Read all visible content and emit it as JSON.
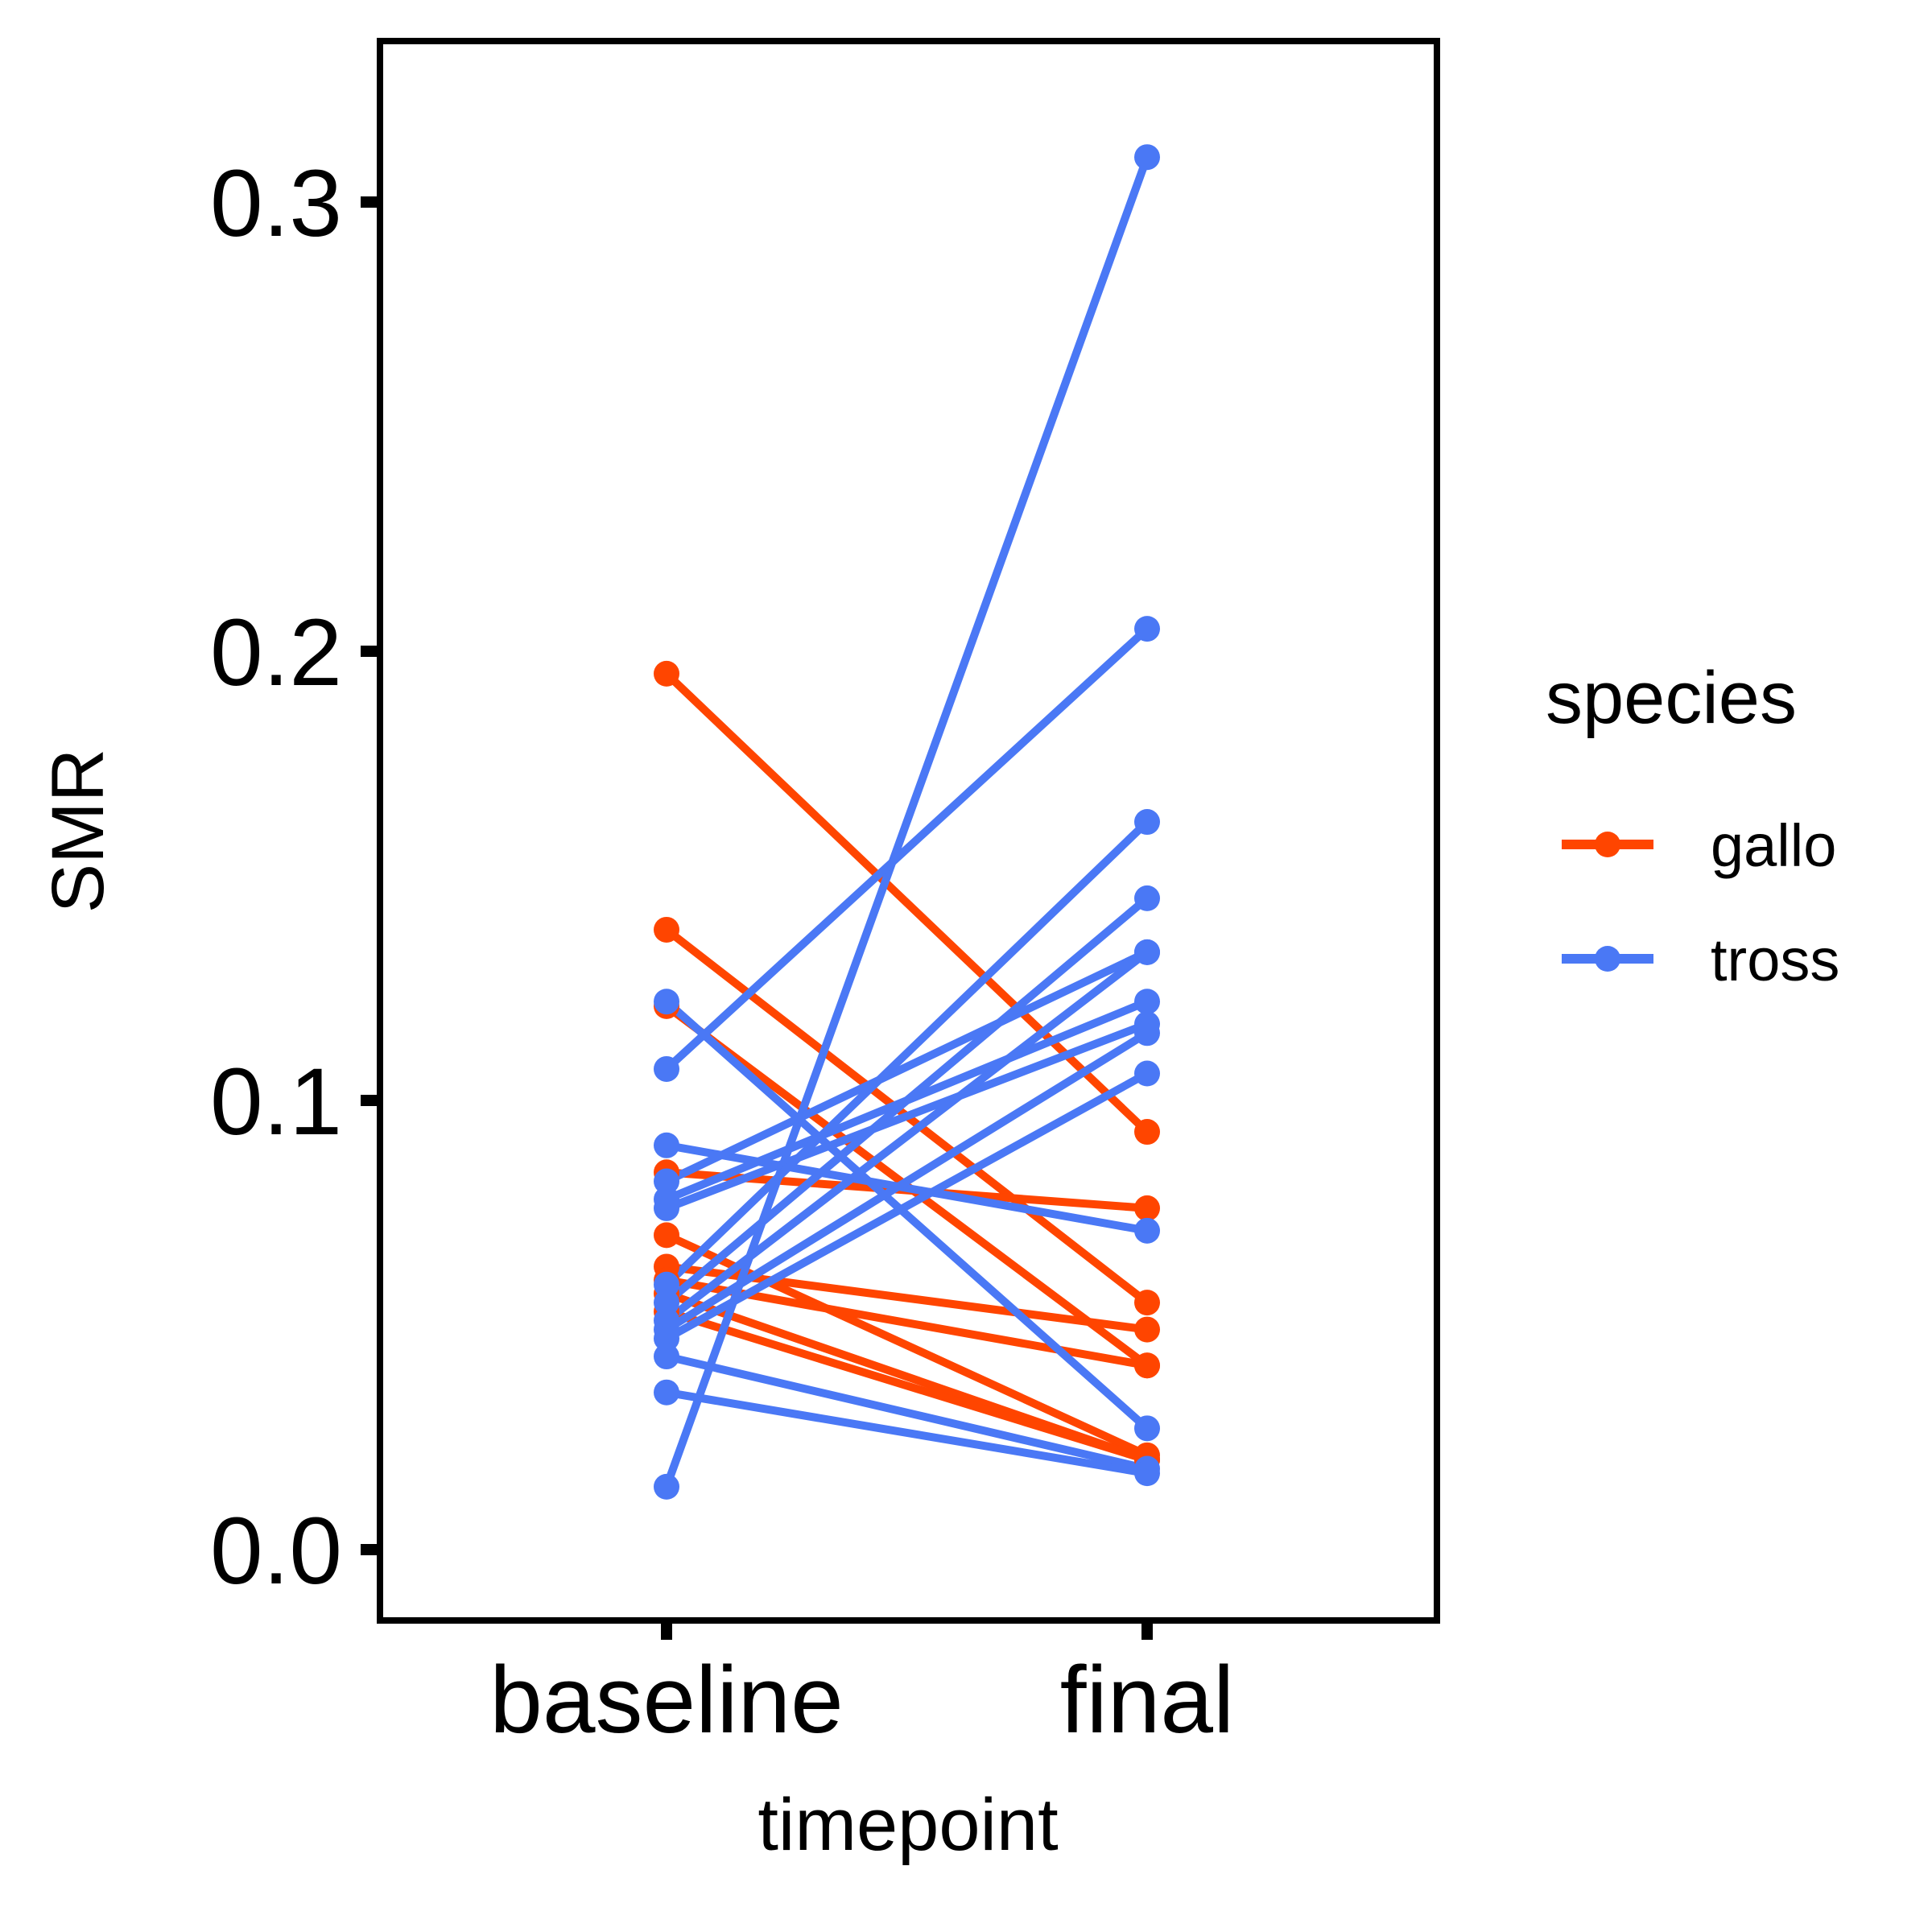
{
  "chart_data": {
    "type": "line",
    "xlabel": "timepoint",
    "ylabel": "SMR",
    "categories": [
      "baseline",
      "final"
    ],
    "ylim": [
      -0.016,
      0.339
    ],
    "yticks": [
      0.0,
      0.1,
      0.2,
      0.3
    ],
    "ytick_labels": [
      "0.0",
      "0.1",
      "0.2",
      "0.3"
    ],
    "grid": false,
    "legend": {
      "title": "species",
      "position": "right",
      "entries": [
        {
          "name": "gallo",
          "color": "#FF4500"
        },
        {
          "name": "tross",
          "color": "#4A78F5"
        }
      ]
    },
    "series": [
      {
        "name": "gallo",
        "color": "#FF4500",
        "pairs": [
          [
            0.195,
            0.093
          ],
          [
            0.138,
            0.055
          ],
          [
            0.121,
            0.041
          ],
          [
            0.084,
            0.076
          ],
          [
            0.07,
            0.021
          ],
          [
            0.063,
            0.049
          ],
          [
            0.06,
            0.041
          ],
          [
            0.057,
            0.02
          ],
          [
            0.053,
            0.02
          ]
        ]
      },
      {
        "name": "tross",
        "color": "#4A78F5",
        "pairs": [
          [
            0.014,
            0.31
          ],
          [
            0.107,
            0.205
          ],
          [
            0.122,
            0.027
          ],
          [
            0.09,
            0.071
          ],
          [
            0.082,
            0.133
          ],
          [
            0.078,
            0.122
          ],
          [
            0.076,
            0.117
          ],
          [
            0.059,
            0.162
          ],
          [
            0.055,
            0.145
          ],
          [
            0.051,
            0.133
          ],
          [
            0.049,
            0.115
          ],
          [
            0.047,
            0.106
          ],
          [
            0.043,
            0.018
          ],
          [
            0.035,
            0.017
          ]
        ]
      }
    ]
  }
}
